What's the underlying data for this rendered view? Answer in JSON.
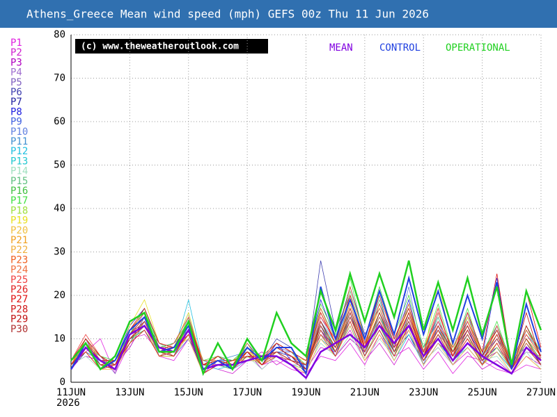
{
  "chart_data": {
    "type": "line",
    "title": "Athens_Greece Mean wind speed (mph) GEFS 00z Thu 11 Jun 2026",
    "watermark": "(c) www.theweatheroutlook.com",
    "x_year": "2026",
    "x": [
      0,
      0.5,
      1,
      1.5,
      2,
      2.5,
      3,
      3.5,
      4,
      4.5,
      5,
      5.5,
      6,
      6.5,
      7,
      7.5,
      8,
      8.5,
      9,
      9.5,
      10,
      10.5,
      11,
      11.5,
      12,
      12.5,
      13,
      13.5,
      14,
      14.5,
      15,
      15.5,
      16
    ],
    "xlim": [
      0,
      16
    ],
    "xticks": [
      {
        "value": 0,
        "label": "11JUN"
      },
      {
        "value": 2,
        "label": "13JUN"
      },
      {
        "value": 4,
        "label": "15JUN"
      },
      {
        "value": 6,
        "label": "17JUN"
      },
      {
        "value": 8,
        "label": "19JUN"
      },
      {
        "value": 10,
        "label": "21JUN"
      },
      {
        "value": 12,
        "label": "23JUN"
      },
      {
        "value": 14,
        "label": "25JUN"
      },
      {
        "value": 16,
        "label": "27JUN"
      }
    ],
    "ylim": [
      0,
      80
    ],
    "yticks": [
      0,
      10,
      20,
      30,
      40,
      50,
      60,
      70,
      80
    ],
    "grid": true,
    "series": [
      {
        "name": "P1",
        "color": "#e020e0",
        "values": [
          4,
          7,
          10,
          2,
          9,
          12,
          6,
          5,
          10,
          3,
          4,
          5,
          6,
          4,
          5,
          3,
          2,
          6,
          5,
          9,
          4,
          11,
          6,
          8,
          3,
          7,
          2,
          6,
          5,
          3,
          2,
          4,
          3
        ]
      },
      {
        "name": "P2",
        "color": "#d020d0",
        "values": [
          3,
          8,
          4,
          3,
          10,
          11,
          7,
          6,
          14,
          4,
          3,
          2,
          5,
          7,
          4,
          6,
          3,
          8,
          7,
          12,
          5,
          9,
          4,
          10,
          5,
          8,
          4,
          7,
          3,
          5,
          2,
          6,
          4
        ]
      },
      {
        "name": "P3",
        "color": "#b000c0",
        "values": [
          4,
          6,
          5,
          4,
          8,
          14,
          9,
          8,
          11,
          2,
          5,
          4,
          7,
          3,
          6,
          5,
          4,
          12,
          6,
          10,
          7,
          14,
          8,
          12,
          4,
          9,
          6,
          11,
          5,
          7,
          3,
          9,
          5
        ]
      },
      {
        "name": "P4",
        "color": "#a070d0",
        "values": [
          3,
          10,
          3,
          5,
          11,
          16,
          6,
          7,
          13,
          5,
          4,
          3,
          6,
          6,
          7,
          4,
          3,
          15,
          9,
          18,
          8,
          13,
          6,
          15,
          7,
          12,
          5,
          10,
          6,
          8,
          4,
          7,
          6
        ]
      },
      {
        "name": "P5",
        "color": "#8060c0",
        "values": [
          4,
          9,
          6,
          2,
          12,
          13,
          8,
          9,
          15,
          3,
          6,
          5,
          8,
          4,
          8,
          7,
          5,
          11,
          8,
          14,
          6,
          16,
          9,
          13,
          5,
          11,
          7,
          13,
          4,
          9,
          3,
          12,
          7
        ]
      },
      {
        "name": "P6",
        "color": "#4040b0",
        "values": [
          5,
          8,
          4,
          3,
          9,
          15,
          7,
          6,
          12,
          4,
          5,
          3,
          9,
          5,
          10,
          8,
          3,
          28,
          12,
          20,
          9,
          18,
          10,
          17,
          8,
          14,
          6,
          15,
          7,
          12,
          3,
          10,
          5
        ]
      },
      {
        "name": "P7",
        "color": "#2020a0",
        "values": [
          3,
          7,
          5,
          4,
          10,
          12,
          6,
          7,
          11,
          2,
          4,
          4,
          6,
          5,
          7,
          6,
          2,
          14,
          7,
          16,
          6,
          13,
          7,
          11,
          5,
          10,
          4,
          9,
          5,
          8,
          3,
          9,
          4
        ]
      },
      {
        "name": "P8",
        "color": "#2020e0",
        "values": [
          4,
          9,
          3,
          5,
          13,
          17,
          9,
          8,
          14,
          3,
          5,
          5,
          7,
          4,
          9,
          5,
          4,
          19,
          10,
          22,
          11,
          17,
          9,
          19,
          6,
          16,
          7,
          12,
          6,
          24,
          4,
          13,
          6
        ]
      },
      {
        "name": "P9",
        "color": "#4060e0",
        "values": [
          5,
          8,
          6,
          3,
          11,
          14,
          7,
          6,
          10,
          4,
          6,
          4,
          8,
          6,
          7,
          7,
          3,
          13,
          6,
          15,
          8,
          20,
          7,
          14,
          4,
          13,
          5,
          14,
          6,
          10,
          5,
          8,
          4
        ]
      },
      {
        "name": "P10",
        "color": "#6080e0",
        "values": [
          3,
          10,
          4,
          4,
          9,
          13,
          8,
          9,
          12,
          5,
          4,
          3,
          5,
          5,
          6,
          4,
          4,
          16,
          9,
          17,
          7,
          15,
          8,
          22,
          6,
          12,
          8,
          16,
          5,
          11,
          4,
          11,
          7
        ]
      },
      {
        "name": "P11",
        "color": "#4090d0",
        "values": [
          4,
          7,
          5,
          5,
          12,
          15,
          6,
          8,
          16,
          3,
          5,
          6,
          7,
          4,
          8,
          6,
          3,
          12,
          8,
          19,
          9,
          14,
          6,
          16,
          7,
          15,
          6,
          11,
          4,
          13,
          3,
          10,
          6
        ]
      },
      {
        "name": "P12",
        "color": "#20c0e0",
        "values": [
          5,
          9,
          4,
          3,
          10,
          12,
          7,
          7,
          19,
          4,
          3,
          4,
          6,
          5,
          7,
          5,
          4,
          10,
          7,
          13,
          6,
          12,
          5,
          11,
          4,
          9,
          5,
          8,
          4,
          7,
          3,
          8,
          4
        ]
      },
      {
        "name": "P13",
        "color": "#20c8d0",
        "values": [
          3,
          8,
          6,
          4,
          11,
          14,
          8,
          6,
          13,
          3,
          6,
          3,
          8,
          6,
          9,
          7,
          5,
          14,
          9,
          16,
          8,
          15,
          9,
          14,
          6,
          12,
          7,
          13,
          6,
          11,
          4,
          9,
          5
        ]
      },
      {
        "name": "P14",
        "color": "#a0e0c0",
        "values": [
          4,
          6,
          3,
          5,
          9,
          13,
          7,
          8,
          12,
          2,
          4,
          5,
          6,
          3,
          6,
          5,
          3,
          9,
          6,
          11,
          5,
          10,
          6,
          12,
          5,
          8,
          4,
          9,
          5,
          6,
          2,
          7,
          3
        ]
      },
      {
        "name": "P15",
        "color": "#60c080",
        "values": [
          5,
          9,
          5,
          4,
          12,
          16,
          9,
          7,
          15,
          4,
          5,
          4,
          7,
          5,
          8,
          6,
          4,
          17,
          10,
          21,
          9,
          19,
          8,
          18,
          7,
          15,
          6,
          14,
          7,
          13,
          5,
          12,
          6
        ]
      },
      {
        "name": "P16",
        "color": "#40c040",
        "values": [
          4,
          8,
          4,
          3,
          10,
          12,
          6,
          6,
          11,
          3,
          4,
          3,
          9,
          4,
          7,
          5,
          3,
          13,
          8,
          15,
          7,
          16,
          7,
          13,
          5,
          11,
          5,
          12,
          5,
          9,
          3,
          10,
          5
        ]
      },
      {
        "name": "P17",
        "color": "#40e040",
        "values": [
          3,
          10,
          6,
          5,
          11,
          17,
          8,
          9,
          14,
          5,
          6,
          5,
          8,
          6,
          9,
          7,
          4,
          18,
          11,
          24,
          10,
          22,
          11,
          20,
          8,
          18,
          7,
          17,
          6,
          14,
          4,
          13,
          7
        ]
      },
      {
        "name": "P18",
        "color": "#a0e040",
        "values": [
          4,
          7,
          3,
          4,
          9,
          14,
          7,
          7,
          12,
          3,
          5,
          4,
          6,
          4,
          6,
          4,
          3,
          11,
          7,
          14,
          6,
          13,
          6,
          15,
          6,
          10,
          5,
          11,
          4,
          8,
          3,
          8,
          4
        ]
      },
      {
        "name": "P19",
        "color": "#e8e020",
        "values": [
          5,
          9,
          5,
          3,
          13,
          19,
          9,
          8,
          16,
          4,
          4,
          5,
          7,
          5,
          8,
          6,
          5,
          16,
          9,
          20,
          8,
          18,
          9,
          17,
          6,
          23,
          8,
          15,
          6,
          12,
          4,
          11,
          6
        ]
      },
      {
        "name": "P20",
        "color": "#f0c040",
        "values": [
          3,
          8,
          4,
          5,
          10,
          13,
          6,
          6,
          11,
          3,
          5,
          3,
          6,
          6,
          7,
          5,
          3,
          12,
          7,
          17,
          7,
          14,
          7,
          13,
          5,
          12,
          5,
          10,
          5,
          9,
          3,
          9,
          5
        ]
      },
      {
        "name": "P21",
        "color": "#f0a020",
        "values": [
          4,
          9,
          6,
          4,
          11,
          15,
          8,
          7,
          13,
          4,
          6,
          4,
          8,
          4,
          8,
          6,
          4,
          14,
          8,
          18,
          9,
          17,
          8,
          16,
          7,
          13,
          6,
          13,
          6,
          11,
          4,
          10,
          6
        ]
      },
      {
        "name": "P22",
        "color": "#f0b040",
        "values": [
          5,
          7,
          3,
          3,
          9,
          12,
          6,
          8,
          10,
          2,
          4,
          5,
          5,
          5,
          6,
          4,
          2,
          10,
          6,
          13,
          5,
          11,
          5,
          12,
          4,
          9,
          4,
          8,
          4,
          7,
          2,
          6,
          3
        ]
      },
      {
        "name": "P23",
        "color": "#f06020",
        "values": [
          4,
          10,
          5,
          5,
          12,
          16,
          7,
          7,
          14,
          5,
          5,
          3,
          7,
          6,
          9,
          7,
          5,
          17,
          9,
          22,
          10,
          20,
          10,
          18,
          7,
          16,
          7,
          14,
          7,
          12,
          5,
          12,
          7
        ]
      },
      {
        "name": "P24",
        "color": "#f07040",
        "values": [
          3,
          8,
          4,
          4,
          10,
          13,
          8,
          6,
          12,
          3,
          6,
          4,
          9,
          4,
          7,
          5,
          3,
          12,
          7,
          15,
          8,
          15,
          7,
          14,
          6,
          11,
          5,
          12,
          5,
          10,
          3,
          9,
          5
        ]
      },
      {
        "name": "P25",
        "color": "#f04040",
        "values": [
          5,
          11,
          6,
          3,
          11,
          14,
          7,
          9,
          15,
          4,
          4,
          5,
          6,
          5,
          8,
          6,
          4,
          15,
          10,
          19,
          9,
          18,
          9,
          16,
          6,
          14,
          8,
          14,
          6,
          13,
          4,
          11,
          6
        ]
      },
      {
        "name": "P26",
        "color": "#e02020",
        "values": [
          4,
          7,
          3,
          4,
          9,
          12,
          6,
          7,
          11,
          3,
          5,
          3,
          7,
          4,
          6,
          5,
          3,
          11,
          6,
          14,
          6,
          12,
          6,
          13,
          5,
          10,
          5,
          10,
          4,
          9,
          3,
          8,
          4
        ]
      },
      {
        "name": "P27",
        "color": "#e01010",
        "values": [
          3,
          9,
          5,
          5,
          12,
          17,
          9,
          8,
          13,
          4,
          6,
          4,
          8,
          5,
          9,
          7,
          5,
          16,
          9,
          20,
          8,
          21,
          10,
          17,
          7,
          17,
          6,
          16,
          7,
          25,
          4,
          21,
          8
        ]
      },
      {
        "name": "P28",
        "color": "#d01818",
        "values": [
          4,
          8,
          4,
          3,
          10,
          13,
          7,
          6,
          12,
          2,
          4,
          5,
          6,
          6,
          7,
          5,
          4,
          13,
          7,
          16,
          7,
          14,
          7,
          15,
          6,
          12,
          6,
          12,
          5,
          11,
          3,
          13,
          6
        ]
      },
      {
        "name": "P29",
        "color": "#c01010",
        "values": [
          5,
          10,
          6,
          4,
          11,
          15,
          8,
          8,
          14,
          4,
          5,
          4,
          7,
          4,
          8,
          6,
          3,
          14,
          8,
          17,
          8,
          16,
          8,
          16,
          6,
          13,
          7,
          13,
          6,
          12,
          4,
          16,
          5
        ]
      },
      {
        "name": "P30",
        "color": "#b03030",
        "values": [
          4,
          8,
          4,
          5,
          10,
          14,
          7,
          7,
          12,
          3,
          5,
          3,
          6,
          5,
          7,
          5,
          4,
          12,
          7,
          15,
          7,
          14,
          7,
          14,
          5,
          11,
          5,
          11,
          5,
          10,
          3,
          10,
          4
        ]
      },
      {
        "name": "MEAN",
        "color": "#8000e0",
        "line_width": 2.5,
        "values": [
          3,
          8,
          5,
          3,
          11,
          13,
          8,
          7,
          12,
          3,
          4,
          4,
          5,
          6,
          6,
          4,
          1,
          7,
          9,
          11,
          8,
          13,
          9,
          13,
          6,
          10,
          5,
          9,
          6,
          4,
          2,
          8,
          5
        ]
      },
      {
        "name": "CONTROL",
        "color": "#2040e0",
        "line_width": 2,
        "values": [
          3,
          9,
          3,
          5,
          12,
          15,
          7,
          8,
          13,
          3,
          5,
          3,
          8,
          5,
          8,
          8,
          2,
          22,
          10,
          19,
          10,
          21,
          11,
          24,
          11,
          21,
          9,
          20,
          10,
          23,
          3,
          18,
          7
        ]
      },
      {
        "name": "OPERATIONAL",
        "color": "#20d020",
        "line_width": 2.5,
        "values": [
          5,
          9,
          3,
          6,
          14,
          16,
          7,
          7,
          14,
          2,
          9,
          3,
          10,
          5,
          16,
          9,
          6,
          21,
          12,
          25,
          14,
          25,
          15,
          28,
          12,
          23,
          12,
          24,
          11,
          22,
          4,
          21,
          12
        ]
      }
    ]
  }
}
